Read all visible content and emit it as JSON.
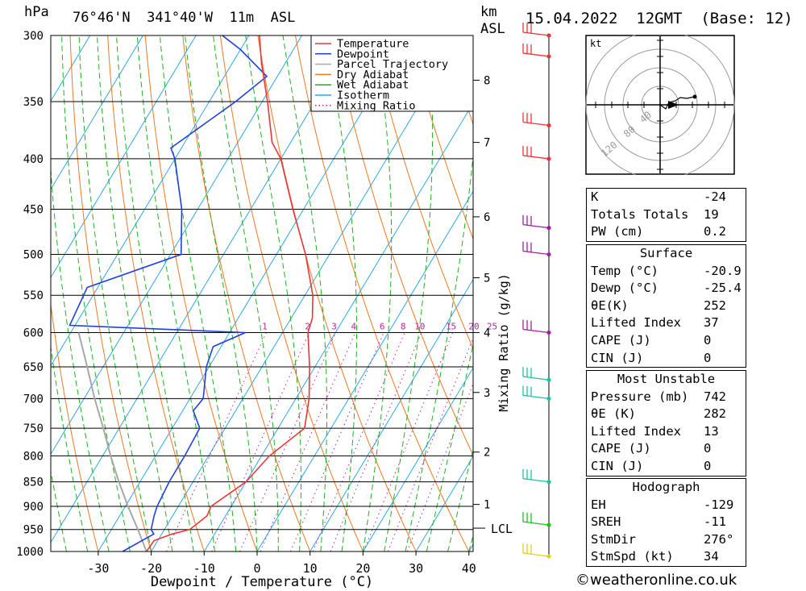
{
  "header": {
    "location": "76°46'N  341°40'W  11m  ASL",
    "datetime": "15.04.2022  12GMT  (Base: 12)",
    "hpa_label": "hPa",
    "km_label": "km",
    "asl_label": "ASL"
  },
  "chart_data": {
    "type": "skew-t",
    "xlabel": "Dewpoint / Temperature (°C)",
    "right_label": "Mixing Ratio (g/kg)",
    "x_ticks": [
      -30,
      -20,
      -10,
      0,
      10,
      20,
      30,
      40
    ],
    "pressure_levels": [
      300,
      350,
      400,
      450,
      500,
      550,
      600,
      650,
      700,
      750,
      800,
      850,
      900,
      950,
      1000
    ],
    "km_ticks": [
      {
        "km": 1,
        "p": 896
      },
      {
        "km": 2,
        "p": 793
      },
      {
        "km": 3,
        "p": 690
      },
      {
        "km": 4,
        "p": 600
      },
      {
        "km": 5,
        "p": 528
      },
      {
        "km": 6,
        "p": 458
      },
      {
        "km": 7,
        "p": 385
      },
      {
        "km": 8,
        "p": 333
      }
    ],
    "lcl": {
      "label": "LCL",
      "p": 947
    },
    "mixing_ratio_labels": [
      "1",
      "2",
      "3",
      "4",
      "6",
      "8",
      "10",
      "15",
      "20",
      "25"
    ],
    "mixing_ratios": [
      1,
      2,
      3,
      4,
      6,
      8,
      10,
      15,
      20,
      25
    ],
    "legend": [
      "Temperature",
      "Dewpoint",
      "Parcel Trajectory",
      "Dry Adiabat",
      "Wet Adiabat",
      "Isotherm",
      "Mixing Ratio"
    ],
    "temperature": [
      [
        1000,
        -20.9
      ],
      [
        975,
        -20.7
      ],
      [
        960,
        -18.0
      ],
      [
        950,
        -15.2
      ],
      [
        920,
        -13.5
      ],
      [
        900,
        -13.8
      ],
      [
        850,
        -10.0
      ],
      [
        800,
        -8.5
      ],
      [
        750,
        -5.0
      ],
      [
        700,
        -7.5
      ],
      [
        650,
        -11.0
      ],
      [
        600,
        -15.2
      ],
      [
        580,
        -16.0
      ],
      [
        550,
        -18.5
      ],
      [
        500,
        -24.5
      ],
      [
        450,
        -32.0
      ],
      [
        400,
        -40.0
      ],
      [
        385,
        -43.5
      ],
      [
        350,
        -49.0
      ],
      [
        320,
        -54.5
      ],
      [
        300,
        -58.0
      ]
    ],
    "dewpoint": [
      [
        1000,
        -25.4
      ],
      [
        960,
        -21.5
      ],
      [
        950,
        -22.5
      ],
      [
        920,
        -23.5
      ],
      [
        900,
        -24.0
      ],
      [
        850,
        -24.5
      ],
      [
        800,
        -24.5
      ],
      [
        750,
        -24.8
      ],
      [
        720,
        -28.0
      ],
      [
        700,
        -27.5
      ],
      [
        650,
        -30.5
      ],
      [
        620,
        -31.5
      ],
      [
        600,
        -27.0
      ],
      [
        590,
        -61.0
      ],
      [
        540,
        -62.0
      ],
      [
        500,
        -48.0
      ],
      [
        450,
        -53.0
      ],
      [
        400,
        -60.0
      ],
      [
        390,
        -62.0
      ],
      [
        350,
        -55.0
      ],
      [
        330,
        -52.0
      ],
      [
        310,
        -60.0
      ],
      [
        300,
        -65.0
      ]
    ],
    "parcel": [
      [
        1000,
        -20.9
      ],
      [
        950,
        -25.0
      ],
      [
        900,
        -29.5
      ],
      [
        850,
        -34.0
      ],
      [
        800,
        -38.5
      ],
      [
        750,
        -43.0
      ],
      [
        700,
        -48.0
      ],
      [
        650,
        -53.0
      ],
      [
        600,
        -58.5
      ]
    ],
    "wind_barbs": [
      {
        "p": 300,
        "color": "#e8353b"
      },
      {
        "p": 315,
        "color": "#e8353b"
      },
      {
        "p": 370,
        "color": "#e8353b"
      },
      {
        "p": 400,
        "color": "#e8353b"
      },
      {
        "p": 470,
        "color": "#a020a0"
      },
      {
        "p": 500,
        "color": "#a020a0"
      },
      {
        "p": 600,
        "color": "#a020a0"
      },
      {
        "p": 670,
        "color": "#20c0a0"
      },
      {
        "p": 700,
        "color": "#20c0a0"
      },
      {
        "p": 850,
        "color": "#20c0a0"
      },
      {
        "p": 940,
        "color": "#20c020"
      },
      {
        "p": 1015,
        "color": "#e0d020"
      }
    ]
  },
  "hodograph": {
    "unit_label": "kt",
    "ring_labels": [
      "40",
      "80",
      "120"
    ]
  },
  "indices": {
    "top": [
      {
        "label": "K",
        "value": "-24"
      },
      {
        "label": "Totals Totals",
        "value": "19"
      },
      {
        "label": "PW (cm)",
        "value": "0.2"
      }
    ],
    "surface": {
      "title": "Surface",
      "rows": [
        {
          "label": "Temp (°C)",
          "value": "-20.9"
        },
        {
          "label": "Dewp (°C)",
          "value": "-25.4"
        },
        {
          "label": "θE(K)",
          "value": "252"
        },
        {
          "label": "Lifted Index",
          "value": "37"
        },
        {
          "label": "CAPE (J)",
          "value": "0"
        },
        {
          "label": "CIN (J)",
          "value": "0"
        }
      ]
    },
    "most_unstable": {
      "title": "Most Unstable",
      "rows": [
        {
          "label": "Pressure (mb)",
          "value": "742"
        },
        {
          "label": "θE (K)",
          "value": "282"
        },
        {
          "label": "Lifted Index",
          "value": "13"
        },
        {
          "label": "CAPE (J)",
          "value": "0"
        },
        {
          "label": "CIN (J)",
          "value": "0"
        }
      ]
    },
    "hodograph": {
      "title": "Hodograph",
      "rows": [
        {
          "label": "EH",
          "value": "-129"
        },
        {
          "label": "SREH",
          "value": "-11"
        },
        {
          "label": "StmDir",
          "value": "276°"
        },
        {
          "label": "StmSpd (kt)",
          "value": "34"
        }
      ]
    }
  },
  "footer": {
    "copyright": "©weatheronline.co.uk"
  },
  "colors": {
    "temperature": "#e8353b",
    "dewpoint": "#2040e0",
    "parcel": "#a8a8a8",
    "dry_adiabat": "#f07820",
    "wet_adiabat": "#20b020",
    "isotherm": "#2ea8e8",
    "mixing_ratio": "#c020a0"
  }
}
